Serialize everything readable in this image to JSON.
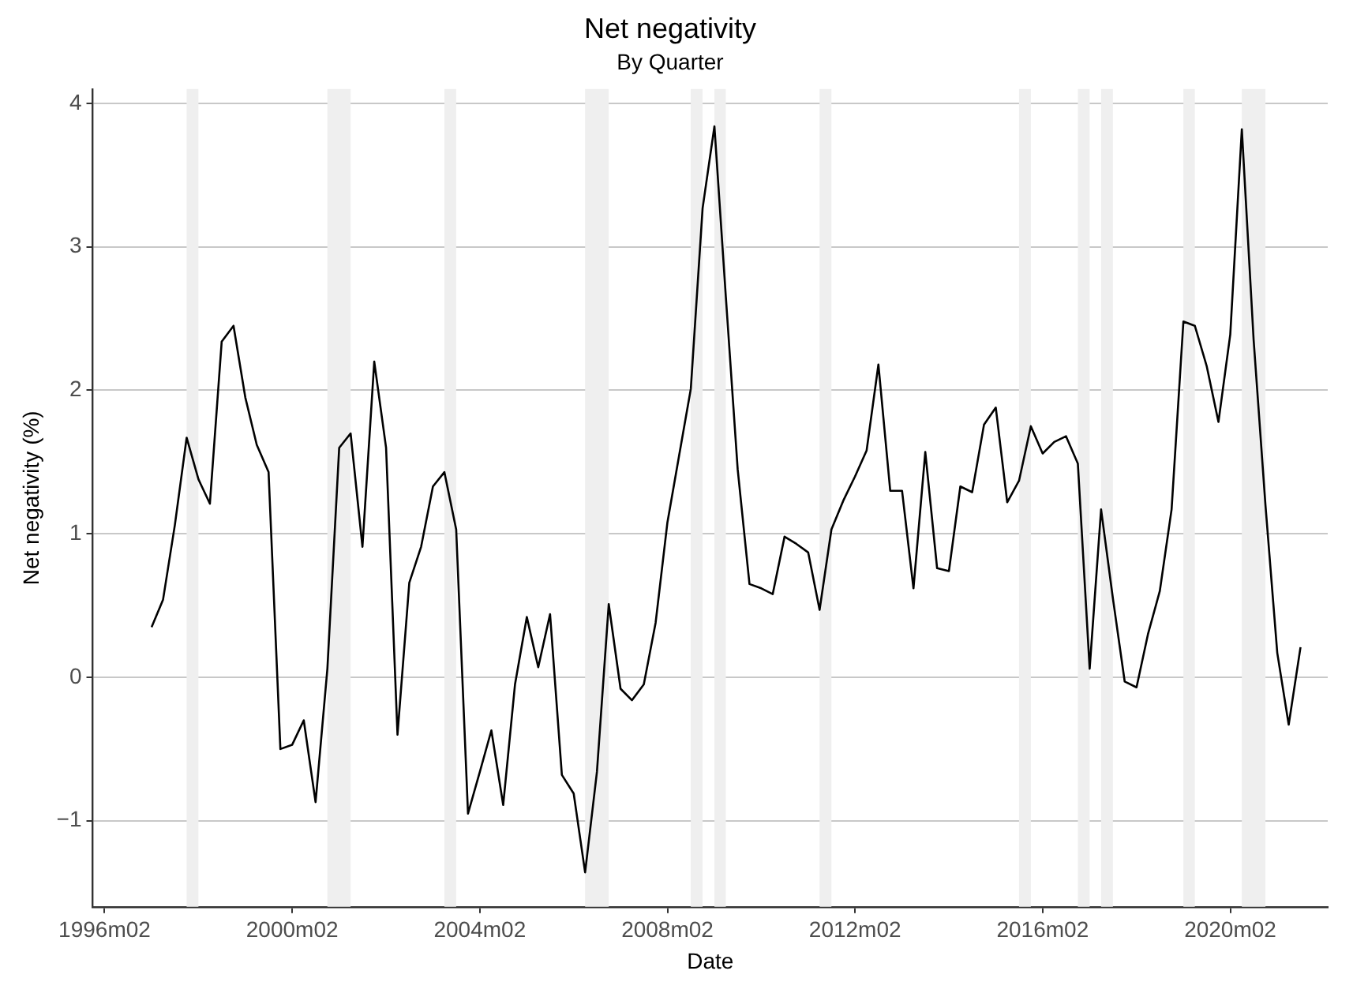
{
  "chart_data": {
    "type": "line",
    "title": "Net negativity",
    "subtitle": "By Quarter",
    "xlabel": "Date",
    "ylabel": "Net negativity (%)",
    "x": [
      "1997-02",
      "1997-05",
      "1997-08",
      "1997-11",
      "1998-02",
      "1998-05",
      "1998-08",
      "1998-11",
      "1999-02",
      "1999-05",
      "1999-08",
      "1999-11",
      "2000-02",
      "2000-05",
      "2000-08",
      "2000-11",
      "2001-02",
      "2001-05",
      "2001-08",
      "2001-11",
      "2002-02",
      "2002-05",
      "2002-08",
      "2002-11",
      "2003-02",
      "2003-05",
      "2003-08",
      "2003-11",
      "2004-02",
      "2004-05",
      "2004-08",
      "2004-11",
      "2005-02",
      "2005-05",
      "2005-08",
      "2005-11",
      "2006-02",
      "2006-05",
      "2006-08",
      "2006-11",
      "2007-02",
      "2007-05",
      "2007-08",
      "2007-11",
      "2008-02",
      "2008-05",
      "2008-08",
      "2008-11",
      "2009-02",
      "2009-05",
      "2009-08",
      "2009-11",
      "2010-02",
      "2010-05",
      "2010-08",
      "2010-11",
      "2011-02",
      "2011-05",
      "2011-08",
      "2011-11",
      "2012-02",
      "2012-05",
      "2012-08",
      "2012-11",
      "2013-02",
      "2013-05",
      "2013-08",
      "2013-11",
      "2014-02",
      "2014-05",
      "2014-08",
      "2014-11",
      "2015-02",
      "2015-05",
      "2015-08",
      "2015-11",
      "2016-02",
      "2016-05",
      "2016-08",
      "2016-11",
      "2017-02",
      "2017-05",
      "2017-08",
      "2017-11",
      "2018-02",
      "2018-05",
      "2018-08",
      "2018-11",
      "2019-02",
      "2019-05",
      "2019-08",
      "2019-11",
      "2020-02",
      "2020-05",
      "2020-08",
      "2020-11",
      "2021-02",
      "2021-05",
      "2021-08"
    ],
    "series": [
      {
        "color": "#000000",
        "values": [
          0.35,
          0.54,
          1.06,
          1.67,
          1.38,
          1.21,
          2.34,
          2.45,
          1.95,
          1.62,
          1.43,
          -0.5,
          -0.47,
          -0.3,
          -0.87,
          0.06,
          1.6,
          1.7,
          0.91,
          2.2,
          1.6,
          -0.4,
          0.66,
          0.91,
          1.33,
          1.43,
          1.03,
          -0.95,
          -0.66,
          -0.37,
          -0.89,
          -0.05,
          0.42,
          0.07,
          0.44,
          -0.68,
          -0.81,
          -1.36,
          -0.66,
          0.51,
          -0.08,
          -0.16,
          -0.05,
          0.38,
          1.08,
          1.54,
          2.01,
          3.27,
          3.84,
          2.65,
          1.45,
          0.65,
          0.62,
          0.58,
          0.98,
          0.93,
          0.87,
          0.47,
          1.03,
          1.23,
          1.4,
          1.58,
          2.18,
          1.3,
          1.3,
          0.62,
          1.57,
          0.76,
          0.74,
          1.33,
          1.29,
          1.76,
          1.88,
          1.22,
          1.37,
          1.75,
          1.56,
          1.64,
          1.68,
          1.49,
          0.06,
          1.17,
          0.55,
          -0.03,
          -0.07,
          0.3,
          0.6,
          1.17,
          2.48,
          2.45,
          2.17,
          1.78,
          2.39,
          3.82,
          2.35,
          1.2,
          0.17,
          -0.33,
          0.21
        ]
      }
    ],
    "xlim": [
      "1995-11",
      "2022-03"
    ],
    "ylim": [
      -1.6,
      4.1
    ],
    "xticks": [
      {
        "value": "1996-02",
        "label": "1996m02"
      },
      {
        "value": "2000-02",
        "label": "2000m02"
      },
      {
        "value": "2004-02",
        "label": "2004m02"
      },
      {
        "value": "2008-02",
        "label": "2008m02"
      },
      {
        "value": "2012-02",
        "label": "2012m02"
      },
      {
        "value": "2016-02",
        "label": "2016m02"
      },
      {
        "value": "2020-02",
        "label": "2020m02"
      }
    ],
    "yticks": [
      {
        "value": -1,
        "label": "−1"
      },
      0,
      1,
      2,
      3,
      4
    ],
    "grid": "y",
    "marker": "none",
    "bands": [
      {
        "axis": "x",
        "from": "1997-11",
        "to": "1998-02",
        "color": "#efefef"
      },
      {
        "axis": "x",
        "from": "2000-11",
        "to": "2001-05",
        "color": "#efefef"
      },
      {
        "axis": "x",
        "from": "2003-05",
        "to": "2003-08",
        "color": "#efefef"
      },
      {
        "axis": "x",
        "from": "2006-05",
        "to": "2006-11",
        "color": "#efefef"
      },
      {
        "axis": "x",
        "from": "2008-08",
        "to": "2008-11",
        "color": "#efefef"
      },
      {
        "axis": "x",
        "from": "2009-02",
        "to": "2009-05",
        "color": "#efefef"
      },
      {
        "axis": "x",
        "from": "2011-05",
        "to": "2011-08",
        "color": "#efefef"
      },
      {
        "axis": "x",
        "from": "2015-08",
        "to": "2015-11",
        "color": "#efefef"
      },
      {
        "axis": "x",
        "from": "2016-11",
        "to": "2017-02",
        "color": "#efefef"
      },
      {
        "axis": "x",
        "from": "2017-05",
        "to": "2017-08",
        "color": "#efefef"
      },
      {
        "axis": "x",
        "from": "2019-02",
        "to": "2019-05",
        "color": "#efefef"
      },
      {
        "axis": "x",
        "from": "2020-05",
        "to": "2020-11",
        "color": "#efefef"
      }
    ]
  }
}
